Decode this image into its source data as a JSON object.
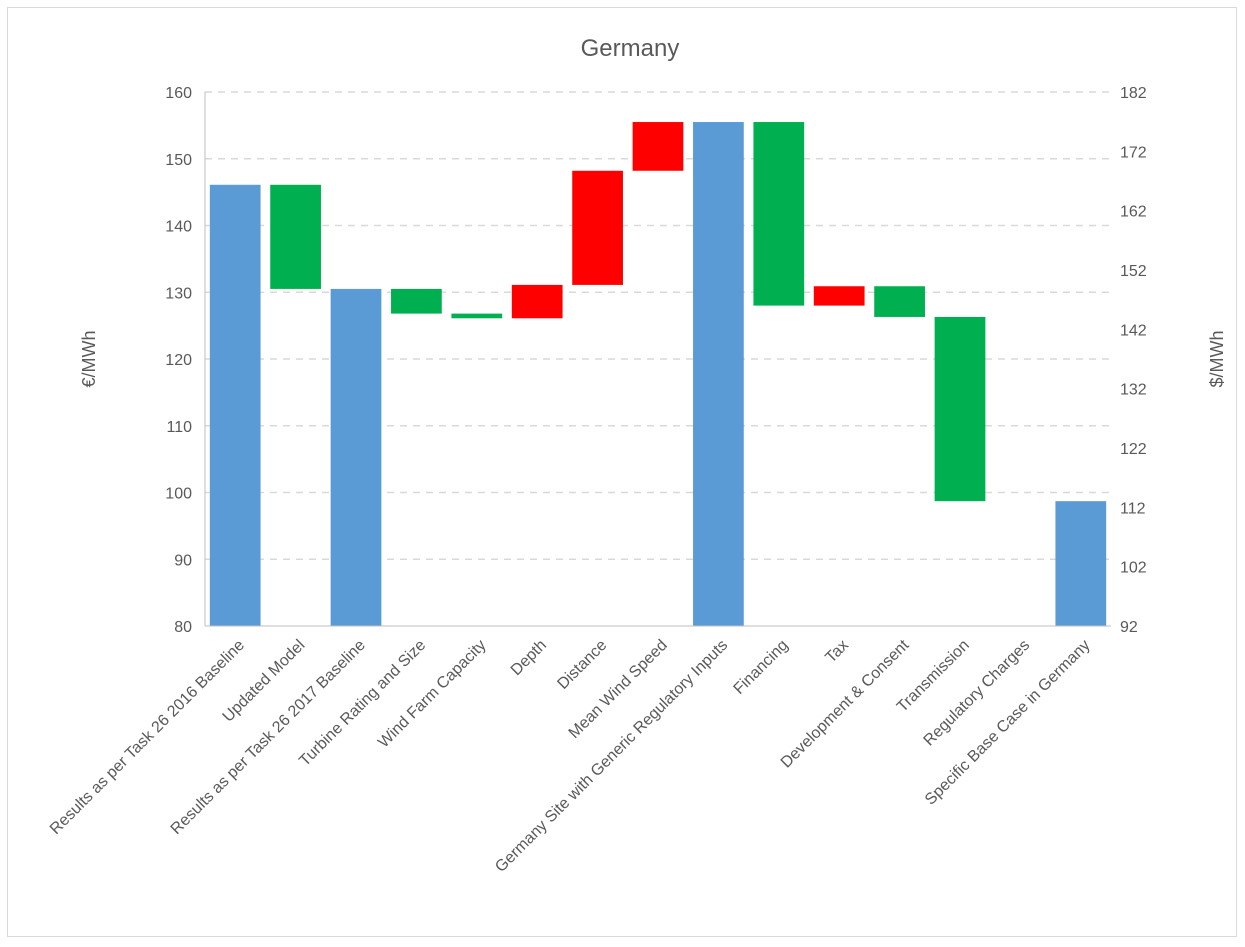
{
  "chart_data": {
    "type": "bar",
    "subtype": "waterfall",
    "title": "Germany",
    "ylabel": "€/MWh",
    "y2label": "$/MWh",
    "ylim": [
      80,
      160
    ],
    "yticks": [
      80,
      90,
      100,
      110,
      120,
      130,
      140,
      150,
      160
    ],
    "y2ticks": [
      92,
      102,
      112,
      122,
      132,
      142,
      152,
      162,
      172,
      182
    ],
    "grid": true,
    "categories": [
      "Results as per Task 26 2016 Baseline",
      "Updated Model",
      "Results as per Task 26 2017 Baseline",
      "Turbine Rating and Size",
      "Wind Farm Capacity",
      "Depth",
      "Distance",
      "Mean Wind Speed",
      "Germany Site with Generic Regulatory Inputs",
      "Financing",
      "Tax",
      "Development & Consent",
      "Transmission",
      "Regulatory Charges",
      "Specific Base Case in Germany"
    ],
    "bars": [
      {
        "kind": "total",
        "start": 80,
        "end": 146.1
      },
      {
        "kind": "decrease",
        "start": 146.1,
        "end": 130.5
      },
      {
        "kind": "total",
        "start": 80,
        "end": 130.5
      },
      {
        "kind": "decrease",
        "start": 130.5,
        "end": 126.8
      },
      {
        "kind": "decrease",
        "start": 126.8,
        "end": 126.1
      },
      {
        "kind": "increase",
        "start": 126.1,
        "end": 131.1
      },
      {
        "kind": "increase",
        "start": 131.1,
        "end": 148.2
      },
      {
        "kind": "increase",
        "start": 148.2,
        "end": 155.5
      },
      {
        "kind": "total",
        "start": 80,
        "end": 155.5
      },
      {
        "kind": "decrease",
        "start": 155.5,
        "end": 128.0
      },
      {
        "kind": "increase",
        "start": 128.0,
        "end": 130.9
      },
      {
        "kind": "decrease",
        "start": 130.9,
        "end": 126.3
      },
      {
        "kind": "decrease",
        "start": 126.3,
        "end": 98.7
      },
      {
        "kind": "decrease",
        "start": 98.7,
        "end": 98.7
      },
      {
        "kind": "total",
        "start": 80,
        "end": 98.7
      }
    ],
    "colors": {
      "total": "#5b9bd5",
      "increase": "#ff0000",
      "decrease": "#00b050",
      "grid": "#d9d9d9",
      "axis": "#bfbfbf"
    }
  }
}
